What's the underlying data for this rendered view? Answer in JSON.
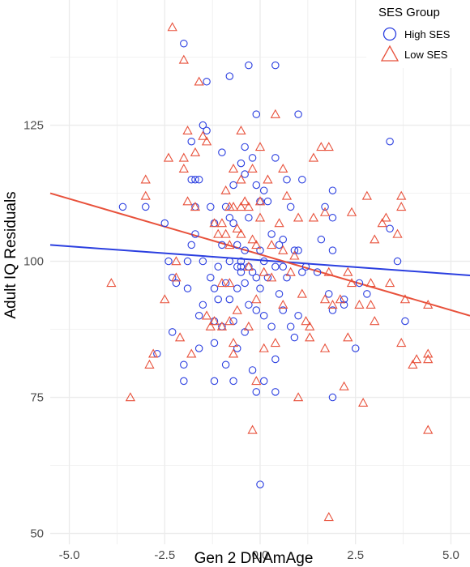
{
  "chart_data": {
    "type": "scatter",
    "xlabel": "Gen 2 DNAmAge",
    "ylabel": "Adult IQ Residuals",
    "xlim": [
      -5.5,
      5.5
    ],
    "ylim": [
      48,
      148
    ],
    "x_ticks": [
      -5.0,
      -2.5,
      0.0,
      2.5,
      5.0
    ],
    "x_tick_labels": [
      "-5.0",
      "-2.5",
      "0.0",
      "2.5",
      "5.0"
    ],
    "y_ticks": [
      50,
      75,
      100,
      125
    ],
    "y_tick_labels": [
      "50",
      "75",
      "100",
      "125"
    ],
    "grid": true,
    "legend": {
      "title": "SES Group",
      "position": "top-right"
    },
    "colors": {
      "high": "#2b3fe0",
      "low": "#e8513b",
      "grid": "#ebebeb"
    },
    "series": [
      {
        "name": "High SES",
        "marker": "circle",
        "trend": {
          "x": [
            -5.5,
            5.5
          ],
          "y": [
            103.0,
            97.4
          ]
        },
        "points": [
          [
            -3.6,
            110
          ],
          [
            -3.0,
            110
          ],
          [
            -2.7,
            83
          ],
          [
            -2.5,
            107
          ],
          [
            -2.4,
            100
          ],
          [
            -2.3,
            97
          ],
          [
            -2.3,
            87
          ],
          [
            -2.2,
            96
          ],
          [
            -2.0,
            140
          ],
          [
            -2.0,
            81
          ],
          [
            -2.0,
            78
          ],
          [
            -1.9,
            100
          ],
          [
            -1.9,
            95
          ],
          [
            -1.8,
            122
          ],
          [
            -1.8,
            115
          ],
          [
            -1.8,
            103
          ],
          [
            -1.7,
            115
          ],
          [
            -1.7,
            110
          ],
          [
            -1.7,
            105
          ],
          [
            -1.6,
            115
          ],
          [
            -1.6,
            90
          ],
          [
            -1.6,
            84
          ],
          [
            -1.5,
            125
          ],
          [
            -1.5,
            100
          ],
          [
            -1.5,
            92
          ],
          [
            -1.4,
            133
          ],
          [
            -1.4,
            124
          ],
          [
            -1.3,
            110
          ],
          [
            -1.3,
            97
          ],
          [
            -1.2,
            107
          ],
          [
            -1.2,
            95
          ],
          [
            -1.2,
            89
          ],
          [
            -1.2,
            85
          ],
          [
            -1.2,
            78
          ],
          [
            -1.1,
            99
          ],
          [
            -1.1,
            93
          ],
          [
            -1.0,
            120
          ],
          [
            -1.0,
            103
          ],
          [
            -1.0,
            88
          ],
          [
            -0.9,
            110
          ],
          [
            -0.9,
            96
          ],
          [
            -0.9,
            81
          ],
          [
            -0.8,
            134
          ],
          [
            -0.8,
            108
          ],
          [
            -0.8,
            100
          ],
          [
            -0.8,
            93
          ],
          [
            -0.7,
            114
          ],
          [
            -0.7,
            107
          ],
          [
            -0.7,
            89
          ],
          [
            -0.7,
            78
          ],
          [
            -0.6,
            103
          ],
          [
            -0.6,
            99
          ],
          [
            -0.6,
            95
          ],
          [
            -0.6,
            84
          ],
          [
            -0.5,
            118
          ],
          [
            -0.5,
            100
          ],
          [
            -0.5,
            99
          ],
          [
            -0.5,
            98
          ],
          [
            -0.4,
            121
          ],
          [
            -0.4,
            116
          ],
          [
            -0.4,
            102
          ],
          [
            -0.4,
            96
          ],
          [
            -0.4,
            87
          ],
          [
            -0.3,
            136
          ],
          [
            -0.3,
            108
          ],
          [
            -0.3,
            99
          ],
          [
            -0.3,
            92
          ],
          [
            -0.2,
            119
          ],
          [
            -0.2,
            98
          ],
          [
            -0.2,
            80
          ],
          [
            -0.1,
            127
          ],
          [
            -0.1,
            114
          ],
          [
            -0.1,
            97
          ],
          [
            -0.1,
            91
          ],
          [
            -0.1,
            76
          ],
          [
            0.0,
            111
          ],
          [
            0.0,
            102
          ],
          [
            0.0,
            95
          ],
          [
            0.0,
            59
          ],
          [
            0.1,
            113
          ],
          [
            0.1,
            100
          ],
          [
            0.1,
            90
          ],
          [
            0.1,
            78
          ],
          [
            0.2,
            111
          ],
          [
            0.2,
            97
          ],
          [
            0.3,
            105
          ],
          [
            0.3,
            88
          ],
          [
            0.4,
            136
          ],
          [
            0.4,
            119
          ],
          [
            0.4,
            99
          ],
          [
            0.4,
            82
          ],
          [
            0.4,
            76
          ],
          [
            0.5,
            103
          ],
          [
            0.5,
            94
          ],
          [
            0.6,
            104
          ],
          [
            0.6,
            99
          ],
          [
            0.6,
            91
          ],
          [
            0.7,
            115
          ],
          [
            0.7,
            97
          ],
          [
            0.8,
            110
          ],
          [
            0.8,
            88
          ],
          [
            0.9,
            102
          ],
          [
            0.9,
            86
          ],
          [
            1.0,
            127
          ],
          [
            1.0,
            102
          ],
          [
            1.0,
            90
          ],
          [
            1.1,
            115
          ],
          [
            1.1,
            98
          ],
          [
            1.2,
            99
          ],
          [
            1.5,
            98
          ],
          [
            1.6,
            104
          ],
          [
            1.7,
            110
          ],
          [
            1.8,
            94
          ],
          [
            1.9,
            113
          ],
          [
            1.9,
            108
          ],
          [
            1.9,
            102
          ],
          [
            1.9,
            91
          ],
          [
            1.9,
            75
          ],
          [
            2.2,
            93
          ],
          [
            2.2,
            92
          ],
          [
            2.5,
            84
          ],
          [
            2.6,
            96
          ],
          [
            2.8,
            94
          ],
          [
            3.4,
            122
          ],
          [
            3.4,
            106
          ],
          [
            3.6,
            100
          ],
          [
            3.8,
            89
          ]
        ]
      },
      {
        "name": "Low SES",
        "marker": "triangle",
        "trend": {
          "x": [
            -5.5,
            5.5
          ],
          "y": [
            112.5,
            90.0
          ]
        },
        "points": [
          [
            -3.9,
            96
          ],
          [
            -3.4,
            75
          ],
          [
            -3.0,
            115
          ],
          [
            -3.0,
            112
          ],
          [
            -2.9,
            81
          ],
          [
            -2.8,
            83
          ],
          [
            -2.5,
            93
          ],
          [
            -2.4,
            119
          ],
          [
            -2.3,
            143
          ],
          [
            -2.2,
            100
          ],
          [
            -2.2,
            97
          ],
          [
            -2.1,
            86
          ],
          [
            -2.0,
            137
          ],
          [
            -2.0,
            119
          ],
          [
            -2.0,
            117
          ],
          [
            -1.9,
            124
          ],
          [
            -1.9,
            111
          ],
          [
            -1.8,
            83
          ],
          [
            -1.7,
            120
          ],
          [
            -1.7,
            110
          ],
          [
            -1.6,
            133
          ],
          [
            -1.5,
            123
          ],
          [
            -1.4,
            122
          ],
          [
            -1.4,
            90
          ],
          [
            -1.3,
            88
          ],
          [
            -1.2,
            89
          ],
          [
            -1.2,
            107
          ],
          [
            -1.1,
            105
          ],
          [
            -1.0,
            107
          ],
          [
            -1.0,
            96
          ],
          [
            -1.0,
            88
          ],
          [
            -0.9,
            113
          ],
          [
            -0.9,
            105
          ],
          [
            -0.8,
            110
          ],
          [
            -0.8,
            103
          ],
          [
            -0.8,
            96
          ],
          [
            -0.8,
            89
          ],
          [
            -0.7,
            117
          ],
          [
            -0.7,
            110
          ],
          [
            -0.7,
            85
          ],
          [
            -0.7,
            83
          ],
          [
            -0.6,
            106
          ],
          [
            -0.6,
            91
          ],
          [
            -0.5,
            124
          ],
          [
            -0.5,
            115
          ],
          [
            -0.5,
            110
          ],
          [
            -0.5,
            105
          ],
          [
            -0.4,
            111
          ],
          [
            -0.3,
            110
          ],
          [
            -0.3,
            99
          ],
          [
            -0.3,
            88
          ],
          [
            -0.2,
            117
          ],
          [
            -0.2,
            104
          ],
          [
            -0.2,
            69
          ],
          [
            -0.1,
            103
          ],
          [
            -0.1,
            93
          ],
          [
            -0.1,
            78
          ],
          [
            0.0,
            121
          ],
          [
            0.0,
            111
          ],
          [
            0.0,
            108
          ],
          [
            0.1,
            98
          ],
          [
            0.1,
            84
          ],
          [
            0.2,
            115
          ],
          [
            0.3,
            103
          ],
          [
            0.3,
            97
          ],
          [
            0.4,
            127
          ],
          [
            0.4,
            85
          ],
          [
            0.5,
            107
          ],
          [
            0.6,
            117
          ],
          [
            0.6,
            102
          ],
          [
            0.6,
            92
          ],
          [
            0.7,
            112
          ],
          [
            0.8,
            98
          ],
          [
            0.9,
            101
          ],
          [
            1.0,
            108
          ],
          [
            1.0,
            75
          ],
          [
            1.1,
            94
          ],
          [
            1.2,
            89
          ],
          [
            1.3,
            86
          ],
          [
            1.3,
            88
          ],
          [
            1.4,
            108
          ],
          [
            1.4,
            119
          ],
          [
            1.6,
            121
          ],
          [
            1.7,
            109
          ],
          [
            1.7,
            93
          ],
          [
            1.7,
            84
          ],
          [
            1.8,
            121
          ],
          [
            1.8,
            98
          ],
          [
            1.8,
            53
          ],
          [
            1.9,
            92
          ],
          [
            2.1,
            93
          ],
          [
            2.2,
            77
          ],
          [
            2.3,
            98
          ],
          [
            2.3,
            86
          ],
          [
            2.4,
            109
          ],
          [
            2.4,
            96
          ],
          [
            2.6,
            92
          ],
          [
            2.7,
            74
          ],
          [
            2.8,
            112
          ],
          [
            2.9,
            96
          ],
          [
            2.9,
            92
          ],
          [
            3.0,
            104
          ],
          [
            3.0,
            89
          ],
          [
            3.2,
            107
          ],
          [
            3.3,
            108
          ],
          [
            3.4,
            96
          ],
          [
            3.6,
            105
          ],
          [
            3.7,
            110
          ],
          [
            3.7,
            85
          ],
          [
            3.7,
            112
          ],
          [
            3.8,
            93
          ],
          [
            4.0,
            81
          ],
          [
            4.1,
            82
          ],
          [
            4.4,
            92
          ],
          [
            4.4,
            83
          ],
          [
            4.4,
            82
          ],
          [
            4.4,
            69
          ]
        ]
      }
    ]
  }
}
